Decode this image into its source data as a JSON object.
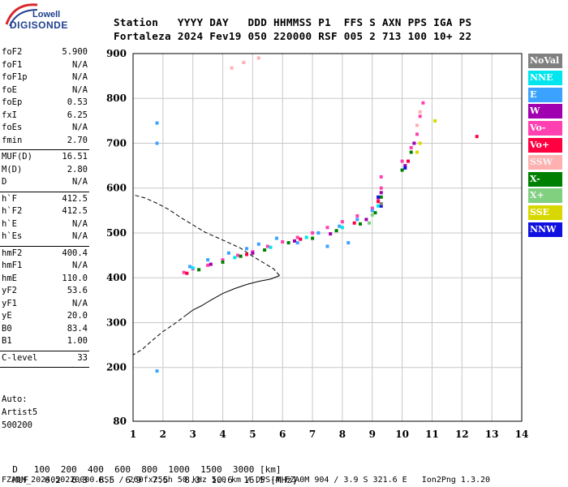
{
  "logo": {
    "brand_top": "Lowell",
    "brand_main": "DIGISONDE"
  },
  "header": {
    "line1": "Station   YYYY DAY   DDD HHMMSS P1  FFS S AXN PPS IGA PS",
    "line2": "Fortaleza 2024 Fev19 050 220000 RSF 005 2 713 100 10+ 22"
  },
  "params": {
    "group1": [
      {
        "key": "foF2",
        "value": "5.900"
      },
      {
        "key": "foF1",
        "value": "N/A"
      },
      {
        "key": "foF1p",
        "value": "N/A"
      },
      {
        "key": "foE",
        "value": "N/A"
      },
      {
        "key": "foEp",
        "value": "0.53"
      },
      {
        "key": "fxI",
        "value": "6.25"
      },
      {
        "key": "foEs",
        "value": "N/A"
      },
      {
        "key": "fmin",
        "value": "2.70"
      }
    ],
    "group2": [
      {
        "key": "MUF(D)",
        "value": "16.51"
      },
      {
        "key": "M(D)",
        "value": "2.80"
      },
      {
        "key": "D",
        "value": "N/A"
      }
    ],
    "group3": [
      {
        "key": "h`F",
        "value": "412.5"
      },
      {
        "key": "h`F2",
        "value": "412.5"
      },
      {
        "key": "h`E",
        "value": "N/A"
      },
      {
        "key": "h`Es",
        "value": "N/A"
      }
    ],
    "group4": [
      {
        "key": "hmF2",
        "value": "400.4"
      },
      {
        "key": "hmF1",
        "value": "N/A"
      },
      {
        "key": "hmE",
        "value": "110.0"
      },
      {
        "key": "yF2",
        "value": "53.6"
      },
      {
        "key": "yF1",
        "value": "N/A"
      },
      {
        "key": "yE",
        "value": "20.0"
      },
      {
        "key": "B0",
        "value": "83.4"
      },
      {
        "key": "B1",
        "value": "1.00"
      }
    ],
    "group5": [
      {
        "key": "C-level",
        "value": "33"
      }
    ]
  },
  "autoscaling": {
    "line1": "Auto:",
    "line2": "Artist5",
    "line3": "500200"
  },
  "legend": [
    {
      "label": "NoVal",
      "color": "#808080"
    },
    {
      "label": "NNE",
      "color": "#00e5ee"
    },
    {
      "label": "E",
      "color": "#3ba3ff"
    },
    {
      "label": "W",
      "color": "#a000b0"
    },
    {
      "label": "Vo-",
      "color": "#ff40b0"
    },
    {
      "label": "Vo+",
      "color": "#ff0040"
    },
    {
      "label": "SSW",
      "color": "#ffb0b0"
    },
    {
      "label": "X-",
      "color": "#008000"
    },
    {
      "label": "X+",
      "color": "#80d080"
    },
    {
      "label": "SSE",
      "color": "#d8d800"
    },
    {
      "label": "NNW",
      "color": "#1010e0"
    }
  ],
  "footer": {
    "d_label": "D",
    "d_values": [
      "100",
      "200",
      "400",
      "600",
      "800",
      "1000",
      "1500",
      "3000"
    ],
    "d_unit": "[km]",
    "muf_label": "MUF",
    "muf_values": [
      "6.2",
      "6.3",
      "6.5",
      "6.9",
      "7.5",
      "8.3",
      "10.6",
      "16.5"
    ],
    "muf_unit": "[MHz]",
    "status": "FZA0M_2024050220000.RSF / 260fx256h 50 kHz 5.0 km / DPS-4 FZA0M 904 / 3.9 S 321.6 E   Ion2Png 1.3.20"
  },
  "chart_data": {
    "type": "scatter",
    "xlim": [
      1,
      14
    ],
    "ylim": [
      80,
      900
    ],
    "x_ticks": [
      1,
      2,
      3,
      4,
      5,
      6,
      7,
      8,
      9,
      10,
      11,
      12,
      13,
      14
    ],
    "y_ticks": [
      80,
      200,
      300,
      400,
      500,
      600,
      700,
      800,
      900
    ],
    "grid": true,
    "legend_placement": "right",
    "series": [
      {
        "name": "Vo-",
        "color": "#ff40b0",
        "points": [
          [
            2.7,
            412
          ],
          [
            3.0,
            420
          ],
          [
            3.5,
            428
          ],
          [
            4.0,
            440
          ],
          [
            4.5,
            450
          ],
          [
            5.0,
            458
          ],
          [
            5.5,
            470
          ],
          [
            6.0,
            480
          ],
          [
            6.5,
            490
          ],
          [
            7.0,
            500
          ],
          [
            7.5,
            512
          ],
          [
            8.0,
            525
          ],
          [
            8.5,
            538
          ],
          [
            9.0,
            555
          ],
          [
            9.2,
            575
          ],
          [
            9.3,
            600
          ],
          [
            9.3,
            625
          ],
          [
            10.0,
            660
          ],
          [
            10.3,
            690
          ],
          [
            10.5,
            720
          ],
          [
            10.6,
            760
          ],
          [
            10.7,
            790
          ]
        ]
      },
      {
        "name": "E",
        "color": "#3ba3ff",
        "points": [
          [
            2.9,
            425
          ],
          [
            3.5,
            440
          ],
          [
            4.2,
            455
          ],
          [
            4.8,
            465
          ],
          [
            5.2,
            475
          ],
          [
            5.8,
            488
          ],
          [
            6.5,
            478
          ],
          [
            7.2,
            500
          ],
          [
            7.9,
            515
          ],
          [
            8.5,
            530
          ],
          [
            9.0,
            550
          ],
          [
            7.5,
            470
          ],
          [
            8.2,
            478
          ],
          [
            1.8,
            745
          ],
          [
            1.8,
            700
          ],
          [
            1.8,
            192
          ]
        ]
      },
      {
        "name": "X-",
        "color": "#008000",
        "points": [
          [
            3.2,
            418
          ],
          [
            4.0,
            435
          ],
          [
            4.6,
            448
          ],
          [
            5.4,
            462
          ],
          [
            6.2,
            478
          ],
          [
            7.0,
            488
          ],
          [
            7.8,
            505
          ],
          [
            8.6,
            520
          ],
          [
            9.1,
            545
          ],
          [
            9.3,
            580
          ],
          [
            10.0,
            640
          ],
          [
            10.3,
            680
          ]
        ]
      },
      {
        "name": "NNE",
        "color": "#00e5ee",
        "points": [
          [
            3.0,
            422
          ],
          [
            4.4,
            445
          ],
          [
            5.6,
            468
          ],
          [
            6.8,
            490
          ],
          [
            8.0,
            512
          ],
          [
            9.2,
            560
          ]
        ]
      },
      {
        "name": "W",
        "color": "#a000b0",
        "points": [
          [
            3.6,
            430
          ],
          [
            5.0,
            455
          ],
          [
            6.4,
            482
          ],
          [
            7.6,
            498
          ],
          [
            8.8,
            530
          ],
          [
            9.3,
            590
          ],
          [
            10.1,
            650
          ],
          [
            10.4,
            700
          ]
        ]
      },
      {
        "name": "Vo+",
        "color": "#ff0040",
        "points": [
          [
            2.8,
            410
          ],
          [
            4.8,
            452
          ],
          [
            6.6,
            486
          ],
          [
            8.4,
            522
          ],
          [
            9.2,
            570
          ],
          [
            10.2,
            660
          ],
          [
            12.5,
            715
          ]
        ]
      },
      {
        "name": "SSE",
        "color": "#d8d800",
        "points": [
          [
            10.5,
            680
          ],
          [
            10.6,
            700
          ],
          [
            11.1,
            750
          ]
        ]
      },
      {
        "name": "SSW",
        "color": "#ffb0b0",
        "points": [
          [
            4.3,
            868
          ],
          [
            4.7,
            880
          ],
          [
            5.2,
            890
          ],
          [
            10.5,
            740
          ],
          [
            10.6,
            770
          ]
        ]
      },
      {
        "name": "NNW",
        "color": "#1010e0",
        "points": [
          [
            9.2,
            580
          ],
          [
            9.3,
            560
          ],
          [
            10.1,
            645
          ]
        ]
      },
      {
        "name": "X+",
        "color": "#80d080",
        "points": [
          [
            8.9,
            522
          ],
          [
            9.0,
            540
          ]
        ]
      },
      {
        "name": "NoVal",
        "color": "#808080",
        "points": [
          [
            9.3,
            565
          ]
        ]
      }
    ],
    "profile_solid": [
      [
        5.9,
        405
      ],
      [
        5.6,
        397
      ],
      [
        5.2,
        392
      ],
      [
        4.8,
        385
      ],
      [
        4.4,
        376
      ],
      [
        4.0,
        365
      ],
      [
        3.6,
        350
      ],
      [
        3.3,
        338
      ],
      [
        3.0,
        328
      ],
      [
        2.8,
        318
      ]
    ],
    "profile_dashed_lower": [
      [
        2.8,
        318
      ],
      [
        2.4,
        298
      ],
      [
        2.0,
        280
      ],
      [
        1.6,
        258
      ],
      [
        1.3,
        240
      ],
      [
        1.0,
        228
      ]
    ],
    "profile_dashed_upper": [
      [
        5.9,
        405
      ],
      [
        5.7,
        420
      ],
      [
        5.4,
        432
      ],
      [
        5.0,
        448
      ],
      [
        4.6,
        466
      ],
      [
        4.2,
        478
      ],
      [
        3.8,
        490
      ],
      [
        3.4,
        502
      ],
      [
        3.0,
        518
      ],
      [
        2.6,
        534
      ],
      [
        2.2,
        552
      ],
      [
        1.8,
        566
      ],
      [
        1.4,
        578
      ],
      [
        1.0,
        585
      ]
    ]
  }
}
